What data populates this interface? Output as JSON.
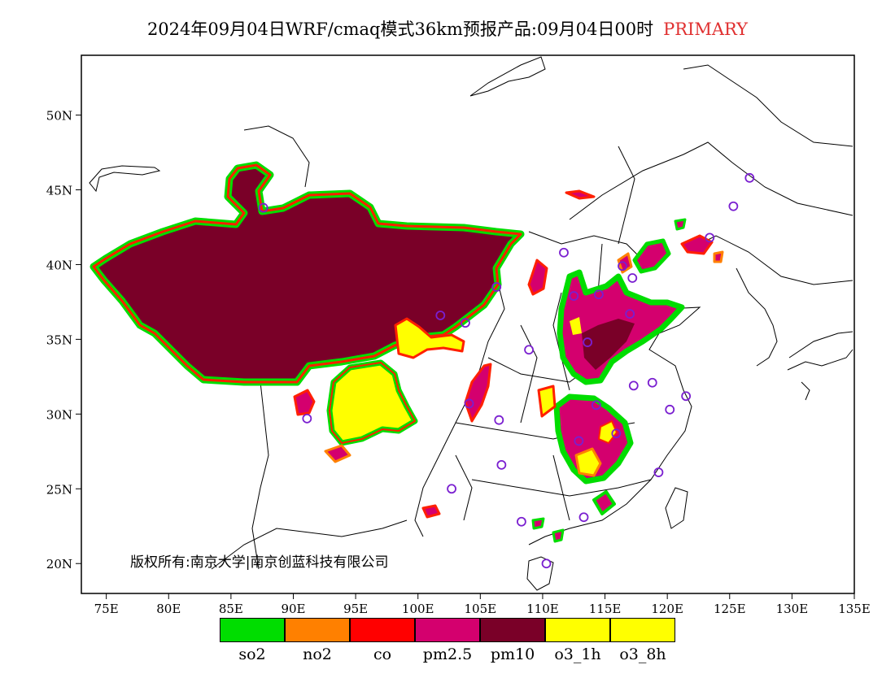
{
  "title": {
    "text": "2024年09月04日WRF/cmaq模式36km预报产品:09月04日00时",
    "status": "PRIMARY"
  },
  "axes": {
    "lat_labels": [
      "50N",
      "45N",
      "40N",
      "35N",
      "30N",
      "25N",
      "20N"
    ],
    "lon_labels": [
      "75E",
      "80E",
      "85E",
      "90E",
      "95E",
      "100E",
      "105E",
      "110E",
      "115E",
      "120E",
      "125E",
      "130E",
      "135E"
    ],
    "lat_values": [
      50,
      45,
      40,
      35,
      30,
      25,
      20
    ],
    "lon_values": [
      75,
      80,
      85,
      90,
      95,
      100,
      105,
      110,
      115,
      120,
      125,
      130,
      135
    ],
    "lon_range": [
      73,
      135
    ],
    "lat_range": [
      18,
      54
    ]
  },
  "copyright": "版权所有:南京大学|南京创蓝科技有限公司",
  "legend": [
    {
      "label": "so2",
      "color": "#00dd00"
    },
    {
      "label": "no2",
      "color": "#ff8000"
    },
    {
      "label": "co",
      "color": "#ff0000"
    },
    {
      "label": "pm2.5",
      "color": "#d4006e"
    },
    {
      "label": "pm10",
      "color": "#7a0028"
    },
    {
      "label": "o3_1h",
      "color": "#ffff00"
    },
    {
      "label": "o3_8h",
      "color": "#ffff00"
    }
  ],
  "stations": [
    [
      87.6,
      43.8
    ],
    [
      91.1,
      29.7
    ],
    [
      101.8,
      36.6
    ],
    [
      103.8,
      36.1
    ],
    [
      106.3,
      38.5
    ],
    [
      106.7,
      26.6
    ],
    [
      104.1,
      30.7
    ],
    [
      106.5,
      29.6
    ],
    [
      102.7,
      25.0
    ],
    [
      108.9,
      34.3
    ],
    [
      111.7,
      40.8
    ],
    [
      112.5,
      37.9
    ],
    [
      114.5,
      38.0
    ],
    [
      116.4,
      39.9
    ],
    [
      117.2,
      39.1
    ],
    [
      113.6,
      34.8
    ],
    [
      114.3,
      30.6
    ],
    [
      112.9,
      28.2
    ],
    [
      115.9,
      28.7
    ],
    [
      117.3,
      31.9
    ],
    [
      118.8,
      32.1
    ],
    [
      120.2,
      30.3
    ],
    [
      121.5,
      31.2
    ],
    [
      119.3,
      26.1
    ],
    [
      113.3,
      23.1
    ],
    [
      108.3,
      22.8
    ],
    [
      110.3,
      20.0
    ],
    [
      123.4,
      41.8
    ],
    [
      125.3,
      43.9
    ],
    [
      126.6,
      45.8
    ],
    [
      117.0,
      36.7
    ]
  ]
}
